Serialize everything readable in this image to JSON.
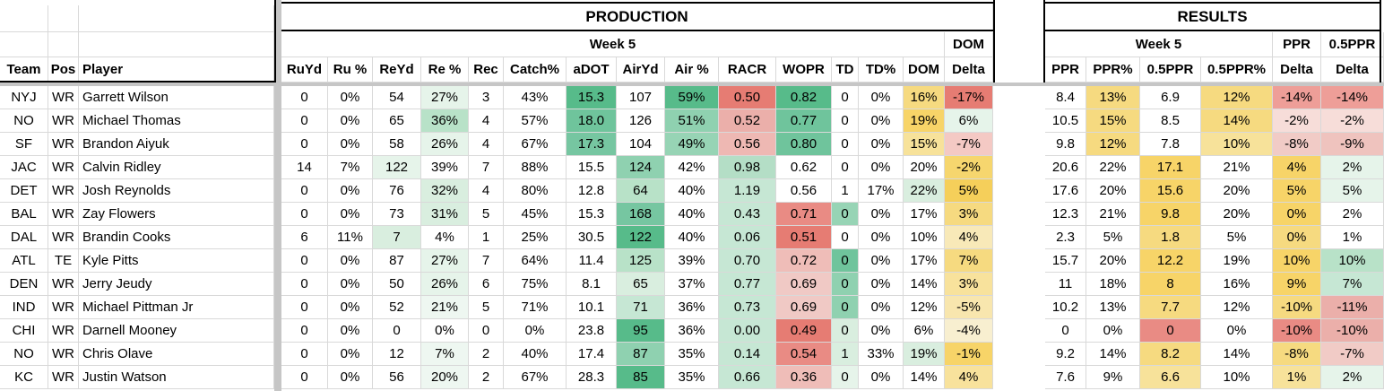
{
  "sections": {
    "production": "PRODUCTION",
    "results": "RESULTS"
  },
  "week_label": "Week 5",
  "dom_label": "DOM",
  "ppr_label": "PPR",
  "half_ppr_label": "0.5PPR",
  "columns": [
    "Team",
    "Pos",
    "Player",
    "RuYd",
    "Ru %",
    "ReYd",
    "Re %",
    "Rec",
    "Catch%",
    "aDOT",
    "AirYd",
    "Air %",
    "RACR",
    "WOPR",
    "TD",
    "TD%",
    "DOM",
    "Delta",
    "",
    "PPR",
    "PPR%",
    "0.5PPR",
    "0.5PPR%",
    "Delta",
    "Delta"
  ],
  "rows": [
    [
      "NYJ",
      "WR",
      "Garrett Wilson",
      "0",
      "0%",
      "54",
      "27%",
      "3",
      "43%",
      "15.3",
      "107",
      "59%",
      "0.50",
      "0.82",
      "0",
      "0%",
      "16%",
      "-17%",
      "",
      "8.4",
      "13%",
      "6.9",
      "12%",
      "-14%",
      "-14%"
    ],
    [
      "NO",
      "WR",
      "Michael Thomas",
      "0",
      "0%",
      "65",
      "36%",
      "4",
      "57%",
      "18.0",
      "126",
      "51%",
      "0.52",
      "0.77",
      "0",
      "0%",
      "19%",
      "6%",
      "",
      "10.5",
      "15%",
      "8.5",
      "14%",
      "-2%",
      "-2%"
    ],
    [
      "SF",
      "WR",
      "Brandon Aiyuk",
      "0",
      "0%",
      "58",
      "26%",
      "4",
      "67%",
      "17.3",
      "104",
      "49%",
      "0.56",
      "0.80",
      "0",
      "0%",
      "15%",
      "-7%",
      "",
      "9.8",
      "12%",
      "7.8",
      "10%",
      "-8%",
      "-9%"
    ],
    [
      "JAC",
      "WR",
      "Calvin Ridley",
      "14",
      "7%",
      "122",
      "39%",
      "7",
      "88%",
      "15.5",
      "124",
      "42%",
      "0.98",
      "0.62",
      "0",
      "0%",
      "20%",
      "-2%",
      "",
      "20.6",
      "22%",
      "17.1",
      "21%",
      "4%",
      "2%"
    ],
    [
      "DET",
      "WR",
      "Josh Reynolds",
      "0",
      "0%",
      "76",
      "32%",
      "4",
      "80%",
      "12.8",
      "64",
      "40%",
      "1.19",
      "0.56",
      "1",
      "17%",
      "22%",
      "5%",
      "",
      "17.6",
      "20%",
      "15.6",
      "20%",
      "5%",
      "5%"
    ],
    [
      "BAL",
      "WR",
      "Zay Flowers",
      "0",
      "0%",
      "73",
      "31%",
      "5",
      "45%",
      "15.3",
      "168",
      "40%",
      "0.43",
      "0.71",
      "0",
      "0%",
      "17%",
      "3%",
      "",
      "12.3",
      "21%",
      "9.8",
      "20%",
      "0%",
      "2%"
    ],
    [
      "DAL",
      "WR",
      "Brandin Cooks",
      "6",
      "11%",
      "7",
      "4%",
      "1",
      "25%",
      "30.5",
      "122",
      "40%",
      "0.06",
      "0.51",
      "0",
      "0%",
      "10%",
      "4%",
      "",
      "2.3",
      "5%",
      "1.8",
      "5%",
      "0%",
      "1%"
    ],
    [
      "ATL",
      "TE",
      "Kyle Pitts",
      "0",
      "0%",
      "87",
      "27%",
      "7",
      "64%",
      "11.4",
      "125",
      "39%",
      "0.70",
      "0.72",
      "0",
      "0%",
      "17%",
      "7%",
      "",
      "15.7",
      "20%",
      "12.2",
      "19%",
      "10%",
      "10%"
    ],
    [
      "DEN",
      "WR",
      "Jerry Jeudy",
      "0",
      "0%",
      "50",
      "26%",
      "6",
      "75%",
      "8.1",
      "65",
      "37%",
      "0.77",
      "0.69",
      "0",
      "0%",
      "14%",
      "3%",
      "",
      "11",
      "18%",
      "8",
      "16%",
      "9%",
      "7%"
    ],
    [
      "IND",
      "WR",
      "Michael Pittman Jr",
      "0",
      "0%",
      "52",
      "21%",
      "5",
      "71%",
      "10.1",
      "71",
      "36%",
      "0.73",
      "0.69",
      "0",
      "0%",
      "12%",
      "-5%",
      "",
      "10.2",
      "13%",
      "7.7",
      "12%",
      "-10%",
      "-11%"
    ],
    [
      "CHI",
      "WR",
      "Darnell Mooney",
      "0",
      "0%",
      "0",
      "0%",
      "0",
      "0%",
      "23.8",
      "95",
      "36%",
      "0.00",
      "0.49",
      "0",
      "0%",
      "6%",
      "-4%",
      "",
      "0",
      "0%",
      "0",
      "0%",
      "-10%",
      "-10%"
    ],
    [
      "NO",
      "WR",
      "Chris Olave",
      "0",
      "0%",
      "12",
      "7%",
      "2",
      "40%",
      "17.4",
      "87",
      "35%",
      "0.14",
      "0.54",
      "1",
      "33%",
      "19%",
      "-1%",
      "",
      "9.2",
      "14%",
      "8.2",
      "14%",
      "-8%",
      "-7%"
    ],
    [
      "KC",
      "WR",
      "Justin Watson",
      "0",
      "0%",
      "56",
      "20%",
      "2",
      "67%",
      "28.3",
      "85",
      "35%",
      "0.66",
      "0.36",
      "0",
      "0%",
      "14%",
      "4%",
      "",
      "7.6",
      "9%",
      "6.6",
      "10%",
      "1%",
      "2%"
    ]
  ],
  "cell_colors": [
    [
      "",
      "",
      "",
      "",
      "",
      "",
      "#e6f4ea",
      "",
      "",
      "#57bb8a",
      "",
      "#57bb8a",
      "#e67c73",
      "#57bb8a",
      "",
      "",
      "#f6da80",
      "#e67c73",
      "",
      "",
      "#f6da80",
      "",
      "#f6da80",
      "#ee9e98",
      "#ee9e98"
    ],
    [
      "",
      "",
      "",
      "",
      "",
      "",
      "#b8e2c8",
      "",
      "",
      "#6fc49c",
      "",
      "#8fd1b0",
      "#ebafaa",
      "#6fc49c",
      "",
      "",
      "#f7d468",
      "#e6f4ea",
      "",
      "",
      "#f6da80",
      "",
      "#f6da80",
      "#f7ddd9",
      "#f7ddd9"
    ],
    [
      "",
      "",
      "",
      "",
      "",
      "",
      "#e6f4ea",
      "",
      "",
      "#76c6a1",
      "",
      "#97d4b5",
      "#eeb8b3",
      "#6fc49c",
      "",
      "",
      "#f7e29a",
      "#f4c9c4",
      "",
      "",
      "#f6da80",
      "",
      "#f7e29a",
      "#f1cbc6",
      "#efc3be"
    ],
    [
      "",
      "",
      "",
      "",
      "",
      "#e6f4ea",
      "",
      "",
      "",
      "",
      "#8fd1b0",
      "",
      "#b4dec6",
      "",
      "",
      "",
      "",
      "#f6d66e",
      "#ffffff",
      "",
      "",
      "#f7d468",
      "",
      "#f7d468",
      "#e6f4ea",
      "#e6f4ea"
    ],
    [
      "",
      "",
      "",
      "",
      "",
      "",
      "#d9eedf",
      "",
      "",
      "",
      "#b8e2c8",
      "",
      "#c6e7d4",
      "",
      "",
      "",
      "#d9eedf",
      "#f5cf5a",
      "#e6f4ea",
      "",
      "",
      "#f7d468",
      "",
      "#f7d468",
      "#e6f4ea",
      "#e6f4ea"
    ],
    [
      "",
      "",
      "",
      "",
      "",
      "",
      "#d9eedf",
      "",
      "",
      "",
      "#76c6a1",
      "",
      "#c6e7d4",
      "#e98b84",
      "#97d4b5",
      "",
      "",
      "#f6da80",
      "#e6f4ea",
      "",
      "",
      "#f7d468",
      "",
      "#f7d468",
      "#ffffff",
      "#e6f4ea"
    ],
    [
      "",
      "",
      "",
      "",
      "",
      "#d9eedf",
      "",
      "",
      "",
      "",
      "#57bb8a",
      "",
      "#c6e7d4",
      "#e67c73",
      "",
      "",
      "",
      "#f8e9b8",
      "#e6f4ea",
      "",
      "",
      "#f6da80",
      "",
      "#f6da80",
      "#ffffff",
      "#ffffff"
    ],
    [
      "",
      "",
      "",
      "",
      "",
      "",
      "#e6f4ea",
      "",
      "",
      "",
      "#b8e2c8",
      "",
      "#c6e7d4",
      "#efbdb8",
      "#6fc49c",
      "",
      "",
      "#f6da80",
      "#e6f4ea",
      "",
      "",
      "#f7d468",
      "",
      "#f7d468",
      "#b8e2c8",
      "#b8e2c8"
    ],
    [
      "",
      "",
      "",
      "",
      "",
      "",
      "#e6f4ea",
      "",
      "",
      "",
      "#d9eedf",
      "",
      "#c6e7d4",
      "#f0c9c5",
      "#8fd1b0",
      "",
      "",
      "#f8e29c",
      "#e6f4ea",
      "",
      "",
      "#f7d468",
      "",
      "#f7d468",
      "#c6e7d4",
      "#c6e7d4"
    ],
    [
      "",
      "",
      "",
      "",
      "",
      "",
      "#eef7f1",
      "",
      "",
      "",
      "#c6e7d4",
      "",
      "#c6e7d4",
      "#f0c9c5",
      "#8fd1b0",
      "",
      "",
      "#f8e6ae",
      "#f4c9c4",
      "",
      "",
      "#f6da80",
      "",
      "#f6da80",
      "#ebafaa",
      "#ebafaa"
    ],
    [
      "",
      "",
      "",
      "",
      "",
      "",
      "#ffffff",
      "",
      "",
      "",
      "#57bb8a",
      "",
      "#c6e7d4",
      "#e67c73",
      "#d9eedf",
      "",
      "",
      "#f8efd0",
      "#f6d8d4",
      "",
      "",
      "#e98b84",
      "",
      "#e98b84",
      "#ebafaa",
      "#ebafaa"
    ],
    [
      "",
      "",
      "",
      "",
      "",
      "",
      "#eef7f1",
      "",
      "",
      "",
      "#8fd1b0",
      "",
      "#c6e7d4",
      "#e98b84",
      "#d9eedf",
      "",
      "#d9eedf",
      "#f7d468",
      "#f7ddd9",
      "",
      "",
      "#f6da80",
      "",
      "#f6da80",
      "#f1cbc6",
      "#f0c5c0"
    ],
    [
      "",
      "",
      "",
      "",
      "",
      "",
      "#eef7f1",
      "",
      "",
      "",
      "#57bb8a",
      "",
      "#c6e7d4",
      "#efbdb8",
      "#e6f4ea",
      "",
      "",
      "#f8e29c",
      "#e6f4ea",
      "",
      "",
      "#f7e29a",
      "",
      "#f7e29a",
      "#e6f4ea",
      "#e6f4ea"
    ]
  ]
}
